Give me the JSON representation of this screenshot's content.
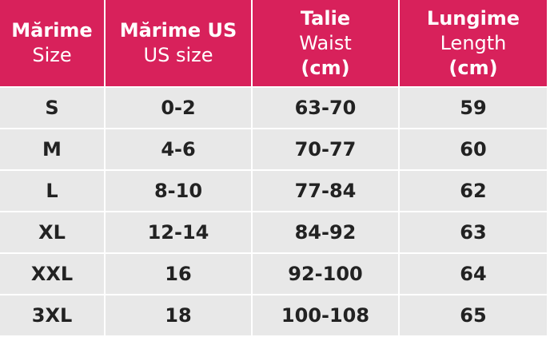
{
  "table": {
    "header": [
      [
        {
          "text": "Mărime",
          "bold": true
        },
        {
          "text": "Size",
          "bold": false
        }
      ],
      [
        {
          "text": "Mărime US",
          "bold": true
        },
        {
          "text": "US size",
          "bold": false
        }
      ],
      [
        {
          "text": "Talie",
          "bold": true
        },
        {
          "text": "Waist",
          "bold": false
        },
        {
          "text": "(cm)",
          "bold": true
        }
      ],
      [
        {
          "text": "Lungime",
          "bold": true
        },
        {
          "text": "Length",
          "bold": false
        },
        {
          "text": "(cm)",
          "bold": true
        }
      ]
    ],
    "rows": [
      [
        "S",
        "0-2",
        "63-70",
        "59"
      ],
      [
        "M",
        "4-6",
        "70-77",
        "60"
      ],
      [
        "L",
        "8-10",
        "77-84",
        "62"
      ],
      [
        "XL",
        "12-14",
        "84-92",
        "63"
      ],
      [
        "XXL",
        "16",
        "92-100",
        "64"
      ],
      [
        "3XL",
        "18",
        "100-108",
        "65"
      ]
    ]
  }
}
